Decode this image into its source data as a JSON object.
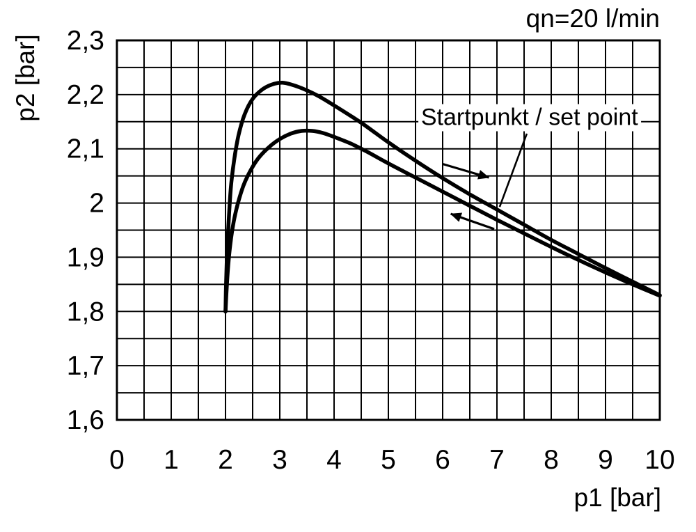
{
  "chart_data": {
    "type": "line",
    "title": "qn=20 l/min",
    "xlabel": "p1 [bar]",
    "ylabel": "p2 [bar]",
    "xlim": [
      0,
      10
    ],
    "ylim": [
      1.6,
      2.3
    ],
    "grid": true,
    "x_grid_step": 0.5,
    "y_grid_step": 0.05,
    "axis_color": "#000000",
    "curve_color": "#000000",
    "x_tick_values": [
      0,
      1,
      2,
      3,
      4,
      5,
      6,
      7,
      8,
      9,
      10
    ],
    "x_tick_labels": [
      "0",
      "1",
      "2",
      "3",
      "4",
      "5",
      "6",
      "7",
      "8",
      "9",
      "10"
    ],
    "y_tick_values": [
      2.3,
      2.2,
      2.1,
      2.0,
      1.9,
      1.8,
      1.7,
      1.6
    ],
    "y_tick_labels": [
      "2,3",
      "2,2",
      "2,1",
      "2",
      "1,9",
      "1,8",
      "1,7",
      "1,6"
    ],
    "series": [
      {
        "name": "upper curve (forward direction, increasing p1)",
        "points": [
          [
            2.0,
            1.8
          ],
          [
            2.01,
            1.85
          ],
          [
            2.03,
            1.91
          ],
          [
            2.06,
            1.97
          ],
          [
            2.1,
            2.03
          ],
          [
            2.16,
            2.08
          ],
          [
            2.24,
            2.125
          ],
          [
            2.35,
            2.163
          ],
          [
            2.5,
            2.192
          ],
          [
            2.7,
            2.211
          ],
          [
            2.9,
            2.22
          ],
          [
            3.05,
            2.222
          ],
          [
            3.2,
            2.219
          ],
          [
            3.4,
            2.212
          ],
          [
            3.7,
            2.198
          ],
          [
            4.0,
            2.18
          ],
          [
            4.5,
            2.148
          ],
          [
            5.0,
            2.112
          ],
          [
            5.5,
            2.078
          ],
          [
            6.0,
            2.046
          ],
          [
            6.5,
            2.016
          ],
          [
            7.0,
            1.988
          ],
          [
            7.5,
            1.96
          ],
          [
            8.0,
            1.932
          ],
          [
            8.5,
            1.906
          ],
          [
            9.0,
            1.88
          ],
          [
            9.5,
            1.855
          ],
          [
            10.0,
            1.83
          ]
        ]
      },
      {
        "name": "lower curve (return direction, decreasing p1)",
        "points": [
          [
            2.0,
            1.8
          ],
          [
            2.02,
            1.84
          ],
          [
            2.05,
            1.885
          ],
          [
            2.09,
            1.925
          ],
          [
            2.15,
            1.965
          ],
          [
            2.23,
            2.0
          ],
          [
            2.33,
            2.032
          ],
          [
            2.45,
            2.058
          ],
          [
            2.6,
            2.082
          ],
          [
            2.8,
            2.103
          ],
          [
            3.0,
            2.118
          ],
          [
            3.2,
            2.128
          ],
          [
            3.4,
            2.133
          ],
          [
            3.6,
            2.133
          ],
          [
            3.8,
            2.129
          ],
          [
            4.0,
            2.122
          ],
          [
            4.3,
            2.11
          ],
          [
            4.6,
            2.095
          ],
          [
            5.0,
            2.073
          ],
          [
            5.5,
            2.047
          ],
          [
            6.0,
            2.021
          ],
          [
            6.5,
            1.995
          ],
          [
            7.0,
            1.969
          ],
          [
            7.5,
            1.944
          ],
          [
            8.0,
            1.919
          ],
          [
            8.5,
            1.895
          ],
          [
            9.0,
            1.872
          ],
          [
            9.5,
            1.85
          ],
          [
            10.0,
            1.829
          ]
        ]
      }
    ],
    "arrows": [
      {
        "name": "direction-arrow-right",
        "from": [
          6.0,
          2.072
        ],
        "to": [
          6.85,
          2.047
        ]
      },
      {
        "name": "direction-arrow-left",
        "from": [
          6.95,
          1.952
        ],
        "to": [
          6.15,
          1.98
        ]
      }
    ],
    "annotation": {
      "label": "Startpunkt / set point",
      "text_center": [
        7.6,
        2.158
      ],
      "leader_from": [
        7.55,
        2.128
      ],
      "leader_to": [
        7.05,
        1.993
      ]
    }
  }
}
